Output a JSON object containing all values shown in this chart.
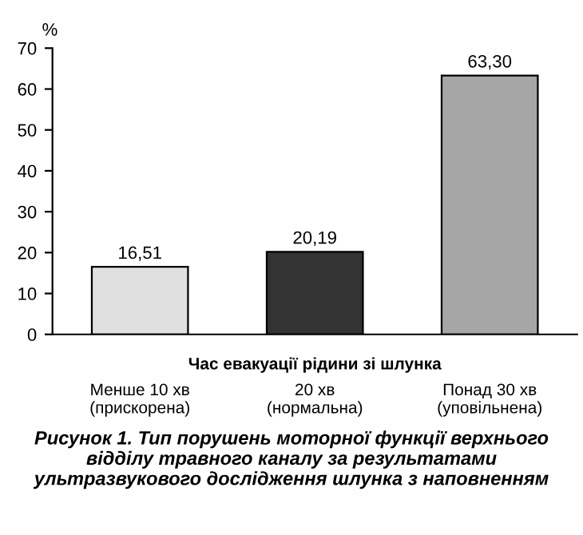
{
  "chart_data": {
    "type": "bar",
    "ylabel": "%",
    "xlabel": "Час евакуації рідини зі шлунка",
    "categories": [
      "Менше 10 хв\n(прискорена)",
      "20 хв\n(нормальна)",
      "Понад 30 хв\n(уповільнена)"
    ],
    "values": [
      16.51,
      20.19,
      63.3
    ],
    "value_labels": [
      "16,51",
      "20,19",
      "63,30"
    ],
    "colors": [
      "#e0e0e0",
      "#333333",
      "#a6a6a6"
    ],
    "ylim": [
      0,
      70
    ],
    "yticks": [
      0,
      10,
      20,
      30,
      40,
      50,
      60,
      70
    ],
    "grid": false,
    "legend": false,
    "annotations": [
      "Рисунок 1. Тип порушень моторної функції верхнього відділу травного каналу за результатами ультразвукового дослідження шлунка з наповненням"
    ]
  }
}
